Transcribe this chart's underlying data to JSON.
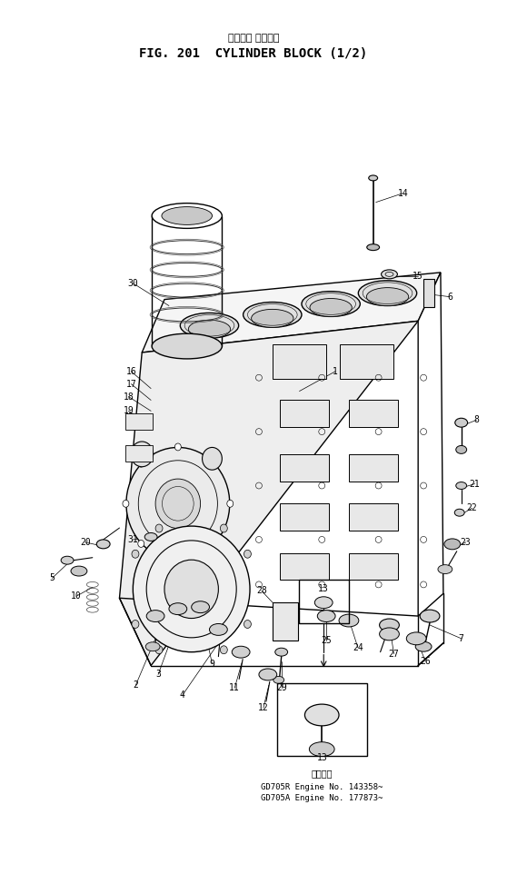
{
  "title_japanese": "シリンダ ブロック",
  "title_english": "FIG. 201  CYLINDER BLOCK (1/2)",
  "bg_color": "#ffffff",
  "fig_width": 5.58,
  "fig_height": 9.73,
  "footnote_label": "適用番機",
  "footnote1": "GD705R Engine No. 143358~",
  "footnote2": "GD705A Engine No. 177873~"
}
